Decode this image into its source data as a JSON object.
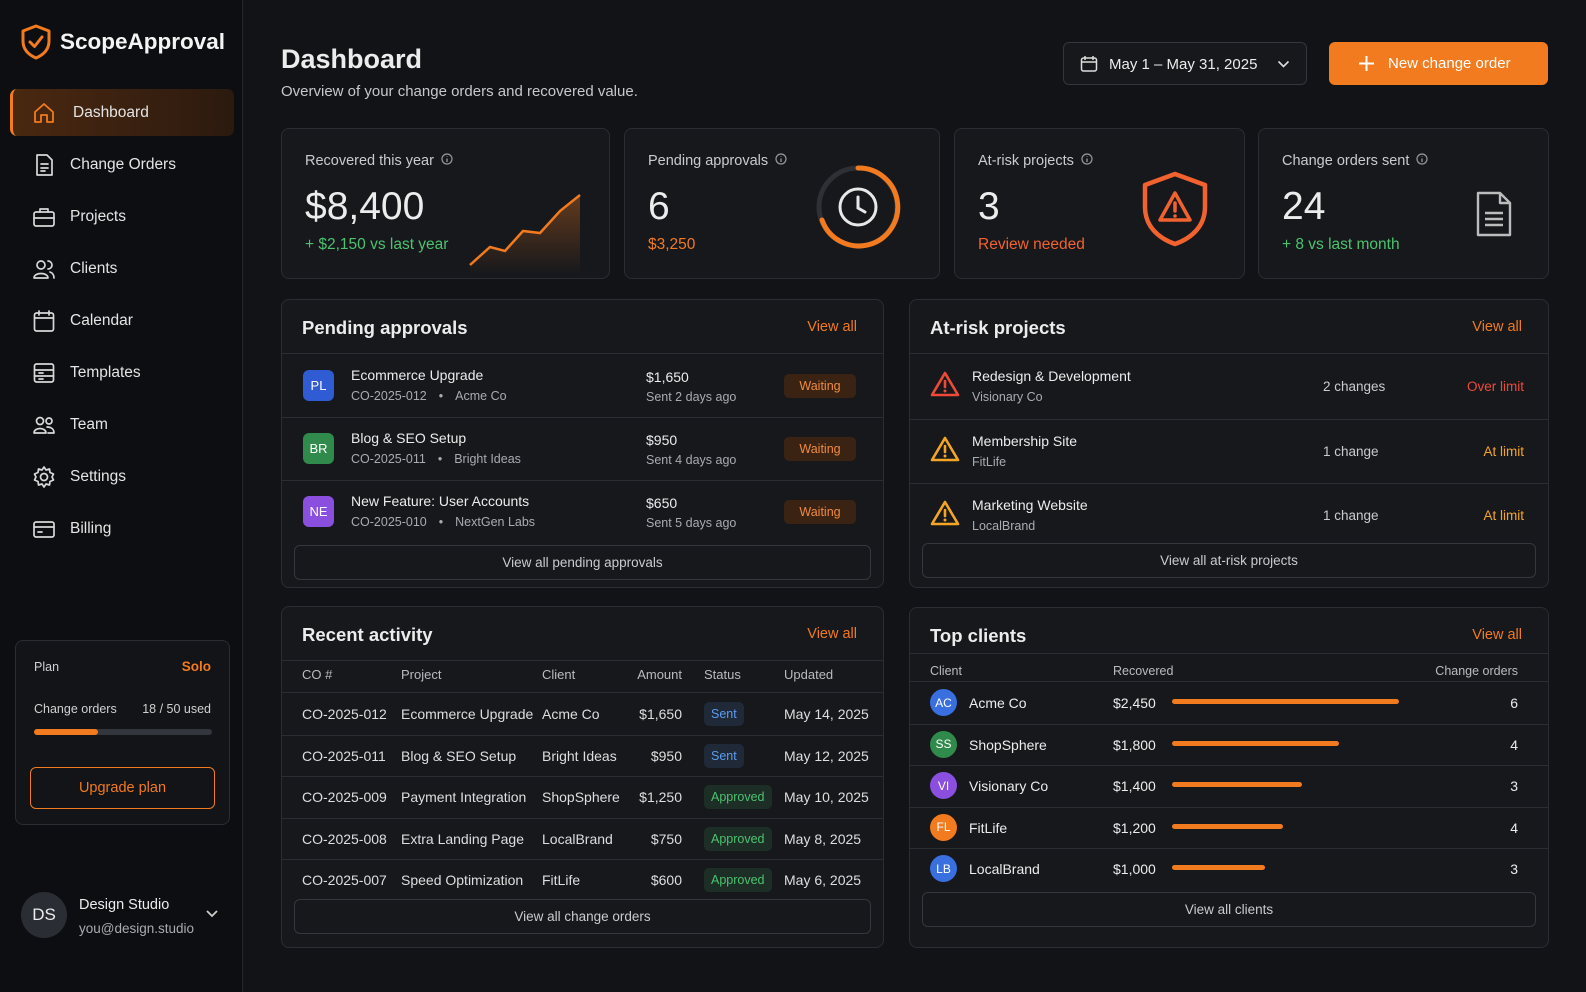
{
  "sidebar": {
    "brand": "ScopeApproval",
    "nav": [
      "Dashboard",
      "Change Orders",
      "Projects",
      "Clients",
      "Calendar",
      "Templates",
      "Team",
      "Settings",
      "Billing"
    ],
    "plan": {
      "label": "Plan",
      "name": "Solo",
      "usage_label": "Change orders",
      "usage": {
        "value": 18,
        "max": 50,
        "label": "18 / 50 used"
      },
      "button": "Upgrade plan"
    },
    "user": {
      "initials": "DS",
      "name": "Design Studio",
      "email": "you@design.studio"
    }
  },
  "header": {
    "title": "Dashboard",
    "subtitle": "Overview of your change orders and recovered value.",
    "date_range": "May 1 – May 31, 2025",
    "new_button": "New change order"
  },
  "kpis": [
    {
      "label": "Recovered this year",
      "value": "$8,400",
      "note": "+ $2,150 vs last year",
      "color": "#4cc26e"
    },
    {
      "label": "Pending approvals",
      "value": "6",
      "note": "$3,250",
      "color": "#f27a1f"
    },
    {
      "label": "At-risk projects",
      "value": "3",
      "note": "Review needed",
      "color": "#f2622e"
    },
    {
      "label": "Change orders sent",
      "value": "24",
      "note": "+ 8 vs last month",
      "color": "#4cc26e"
    }
  ],
  "pending_approvals": {
    "title": "Pending approvals",
    "view_all": "View all",
    "items": [
      {
        "initials": "PL",
        "color": "#2f5bd3",
        "name": "Ecommerce Upgrade",
        "code": "CO-2025-012",
        "client": "Acme Co",
        "amount": "$1,650",
        "sent": "Sent 2 days ago",
        "status": "Waiting"
      },
      {
        "initials": "BR",
        "color": "#2f8a4c",
        "name": "Blog & SEO Setup",
        "code": "CO-2025-011",
        "client": "Bright Ideas",
        "amount": "$950",
        "sent": "Sent 4 days ago",
        "status": "Waiting"
      },
      {
        "initials": "NE",
        "color": "#8b4fe0",
        "name": "New Feature: User Accounts",
        "code": "CO-2025-010",
        "client": "NextGen Labs",
        "amount": "$650",
        "sent": "Sent 5 days ago",
        "status": "Waiting"
      }
    ],
    "footer": "View all pending approvals"
  },
  "at_risk": {
    "title": "At-risk projects",
    "view_all": "View all",
    "items": [
      {
        "name": "Redesign & Development",
        "client": "Visionary Co",
        "changes": "2 changes",
        "status": "Over limit",
        "color": "#ef4a37"
      },
      {
        "name": "Membership Site",
        "client": "FitLife",
        "changes": "1 change",
        "status": "At limit",
        "color": "#f5a524"
      },
      {
        "name": "Marketing Website",
        "client": "LocalBrand",
        "changes": "1 change",
        "status": "At limit",
        "color": "#f5a524"
      }
    ],
    "footer": "View all at-risk projects"
  },
  "recent_activity": {
    "title": "Recent activity",
    "view_all": "View all",
    "columns": [
      "CO #",
      "Project",
      "Client",
      "Amount",
      "Status",
      "Updated"
    ],
    "rows": [
      [
        "CO-2025-012",
        "Ecommerce Upgrade",
        "Acme Co",
        "$1,650",
        "Sent",
        "May 14, 2025"
      ],
      [
        "CO-2025-011",
        "Blog & SEO Setup",
        "Bright Ideas",
        "$950",
        "Sent",
        "May 12, 2025"
      ],
      [
        "CO-2025-009",
        "Payment Integration",
        "ShopSphere",
        "$1,250",
        "Approved",
        "May 10, 2025"
      ],
      [
        "CO-2025-008",
        "Extra Landing Page",
        "LocalBrand",
        "$750",
        "Approved",
        "May 8, 2025"
      ],
      [
        "CO-2025-007",
        "Speed Optimization",
        "FitLife",
        "$600",
        "Approved",
        "May 6, 2025"
      ]
    ],
    "status_colors": [
      "#5b9cf0",
      "#5b9cf0",
      "#4cc26e",
      "#4cc26e",
      "#4cc26e"
    ],
    "footer": "View all change orders"
  },
  "top_clients": {
    "title": "Top clients",
    "view_all": "View all",
    "columns": [
      "Client",
      "Recovered",
      "Change orders"
    ],
    "initials": [
      "AC",
      "SS",
      "VI",
      "FL",
      "LB"
    ],
    "colors": [
      "#3a6fe0",
      "#2f8a4c",
      "#8b4fe0",
      "#f27a1f",
      "#3a6fe0"
    ],
    "clients": [
      "Acme Co",
      "ShopSphere",
      "Visionary Co",
      "FitLife",
      "LocalBrand"
    ],
    "values": [
      2450,
      1800,
      1400,
      1200,
      1000
    ],
    "value_labels": [
      "$2,450",
      "$1,800",
      "$1,400",
      "$1,200",
      "$1,000"
    ],
    "bar_color": "#f27a1f",
    "change_orders": [
      "6",
      "4",
      "3",
      "4",
      "3"
    ],
    "footer": "View all clients"
  }
}
